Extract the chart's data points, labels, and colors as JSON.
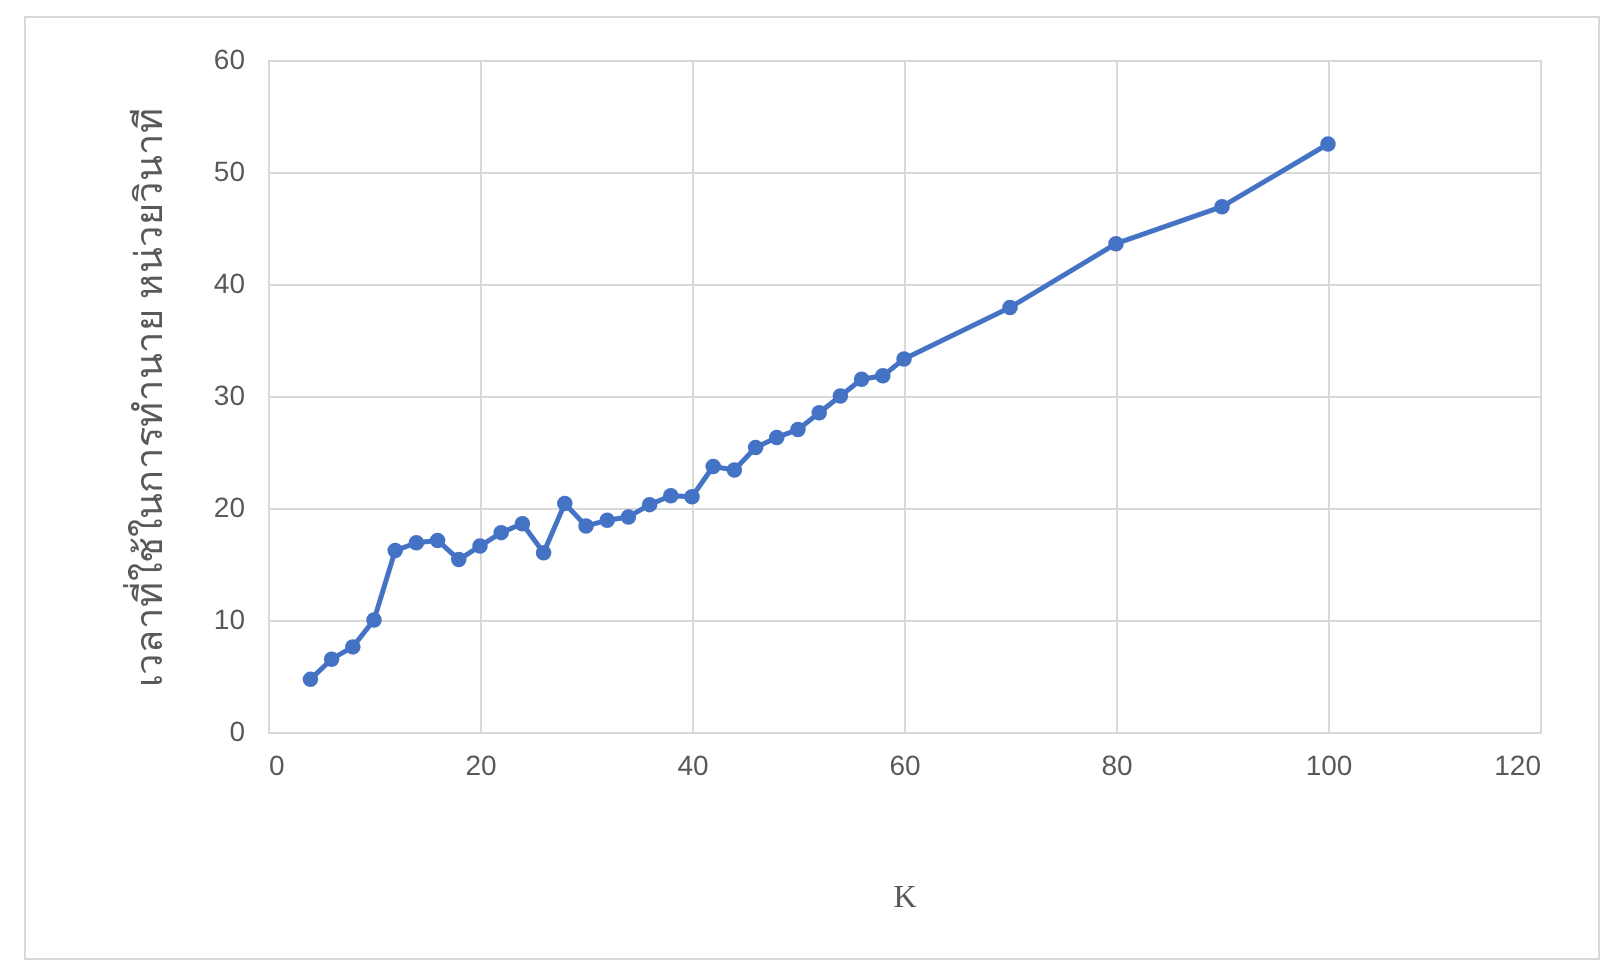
{
  "chart_data": {
    "type": "line",
    "xlabel": "K",
    "ylabel": "เวลาที่ใช้ในการทำนาย หน่วยวินาที",
    "x": [
      4,
      6,
      8,
      10,
      12,
      14,
      16,
      18,
      20,
      22,
      24,
      26,
      28,
      30,
      32,
      34,
      36,
      38,
      40,
      42,
      44,
      46,
      48,
      50,
      52,
      54,
      56,
      58,
      60,
      70,
      80,
      90,
      100
    ],
    "series": [
      {
        "color": "#4472c4",
        "values": [
          4.7,
          6.5,
          7.6,
          10,
          16.2,
          16.9,
          17.1,
          15.4,
          16.6,
          17.8,
          18.6,
          16.0,
          20.4,
          18.4,
          18.9,
          19.2,
          20.3,
          21.1,
          21.0,
          23.7,
          23.4,
          25.4,
          26.3,
          27.0,
          28.5,
          30.0,
          31.5,
          31.8,
          33.3,
          37.9,
          43.6,
          46.9,
          52.5
        ]
      }
    ],
    "xlim": [
      0,
      120
    ],
    "xticks": [
      0,
      20,
      40,
      60,
      80,
      100,
      120
    ],
    "ylim": [
      0,
      60
    ],
    "yticks": [
      0,
      10,
      20,
      30,
      40,
      50,
      60
    ],
    "grid": true,
    "marker": "circle",
    "line_style": "solid"
  }
}
